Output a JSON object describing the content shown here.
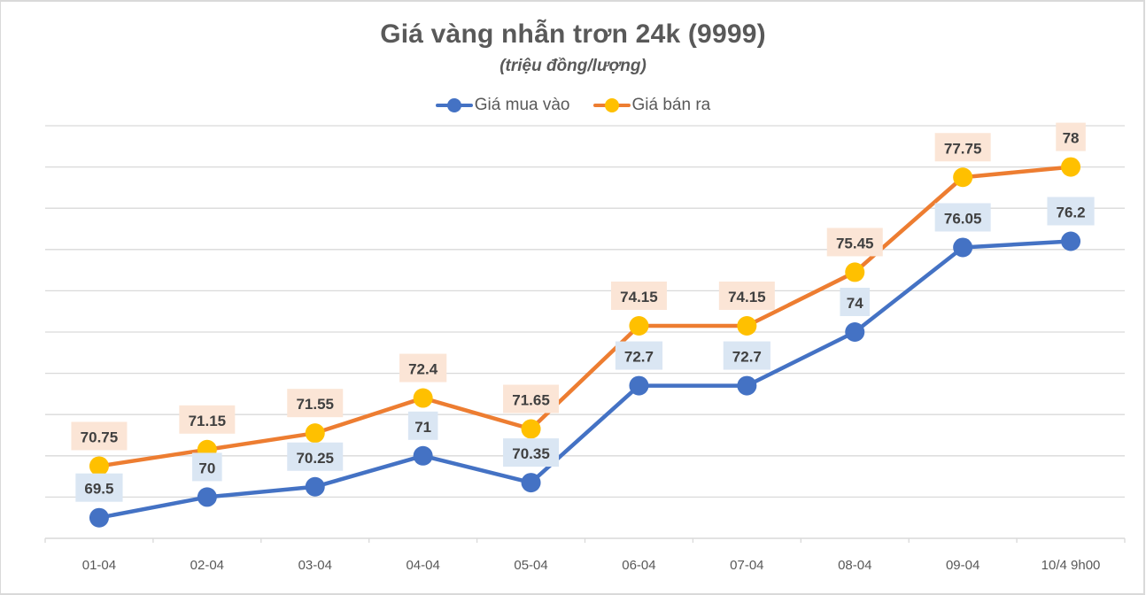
{
  "chart_data": {
    "type": "line",
    "title": "Giá vàng nhẫn trơn 24k (9999)",
    "subtitle": "(triệu đồng/lượng)",
    "xlabel": "",
    "ylabel": "",
    "ylim": [
      69,
      79
    ],
    "grid": true,
    "y_axis_labels_visible": false,
    "legend_position": "top",
    "categories": [
      "01-04",
      "02-04",
      "03-04",
      "04-04",
      "05-04",
      "06-04",
      "07-04",
      "08-04",
      "09-04",
      "10/4 9h00"
    ],
    "series": [
      {
        "name": "Giá mua vào",
        "values": [
          69.5,
          70,
          70.25,
          71,
          70.35,
          72.7,
          72.7,
          74,
          76.05,
          76.2
        ],
        "labels": [
          "69.5",
          "70",
          "70.25",
          "71",
          "70.35",
          "72.7",
          "72.7",
          "74",
          "76.05",
          "76.2"
        ],
        "line_color": "#4472c4",
        "marker_color": "#4472c4",
        "label_bg": "#dae6f3"
      },
      {
        "name": "Giá bán ra",
        "values": [
          70.75,
          71.15,
          71.55,
          72.4,
          71.65,
          74.15,
          74.15,
          75.45,
          77.75,
          78
        ],
        "labels": [
          "70.75",
          "71.15",
          "71.55",
          "72.4",
          "71.65",
          "74.15",
          "74.15",
          "75.45",
          "77.75",
          "78"
        ],
        "line_color": "#ed7d31",
        "marker_color": "#ffc000",
        "label_bg": "#fbe5d6"
      }
    ]
  },
  "header": {
    "title": "Giá vàng nhẫn trơn 24k (9999)",
    "subtitle": "(triệu đồng/lượng)"
  },
  "legend": {
    "items": [
      {
        "label": "Giá mua vào",
        "line_color": "#4472c4",
        "marker_color": "#4472c4"
      },
      {
        "label": "Giá bán ra",
        "line_color": "#ed7d31",
        "marker_color": "#ffc000"
      }
    ]
  },
  "colors": {
    "grid": "#d9d9d9",
    "axis_text": "#595959",
    "label_text": "#404040",
    "border": "#d9d9d9"
  }
}
